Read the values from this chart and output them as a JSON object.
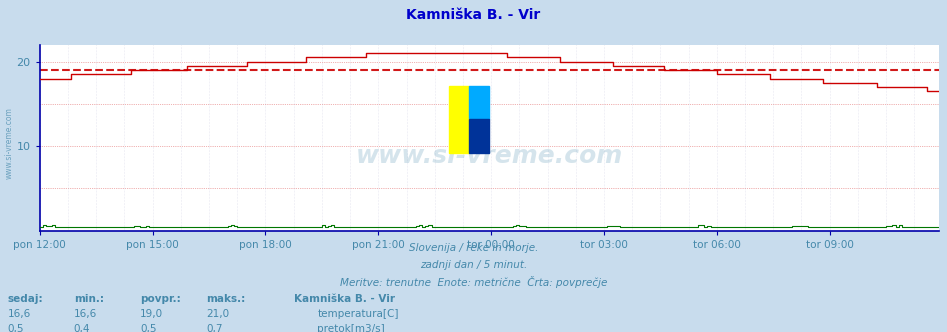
{
  "title": "Kamniška B. - Vir",
  "title_color": "#0000cc",
  "bg_color": "#c8dced",
  "plot_bg_color": "#ffffff",
  "x_tick_labels": [
    "pon 12:00",
    "pon 15:00",
    "pon 18:00",
    "pon 21:00",
    "tor 00:00",
    "tor 03:00",
    "tor 06:00",
    "tor 09:00"
  ],
  "x_tick_positions": [
    0,
    36,
    72,
    108,
    144,
    180,
    216,
    252
  ],
  "n_points": 288,
  "ylim": [
    0,
    22
  ],
  "yticks": [
    10,
    20
  ],
  "temp_color": "#cc0000",
  "flow_color": "#007700",
  "avg_line_color": "#cc0000",
  "avg_value": 19.0,
  "grid_color_h": "#cc0000",
  "grid_color_v": "#aaaacc",
  "grid_alpha": 0.4,
  "axis_color": "#0000aa",
  "text_color": "#4488aa",
  "subtitle1": "Slovenija / reke in morje.",
  "subtitle2": "zadnji dan / 5 minut.",
  "subtitle3": "Meritve: trenutne  Enote: metrične  Črta: povprečje",
  "watermark": "www.si-vreme.com",
  "watermark_color": "#4488aa",
  "station_label": "Kamniška B. - Vir",
  "label_sedaj": "sedaj:",
  "label_min": "min.:",
  "label_povpr": "povpr.:",
  "label_maks": "maks.:",
  "legend_temp": "temperatura[C]",
  "legend_flow": "pretok[m3/s]",
  "temp_current": 16.6,
  "temp_min": 16.6,
  "temp_avg": 19.0,
  "temp_max": 21.0,
  "flow_current": 0.5,
  "flow_min": 0.4,
  "flow_avg": 0.5,
  "flow_max": 0.7,
  "logo_colors": [
    "#ffff00",
    "#00aaff",
    "#ffff00",
    "#003399"
  ]
}
